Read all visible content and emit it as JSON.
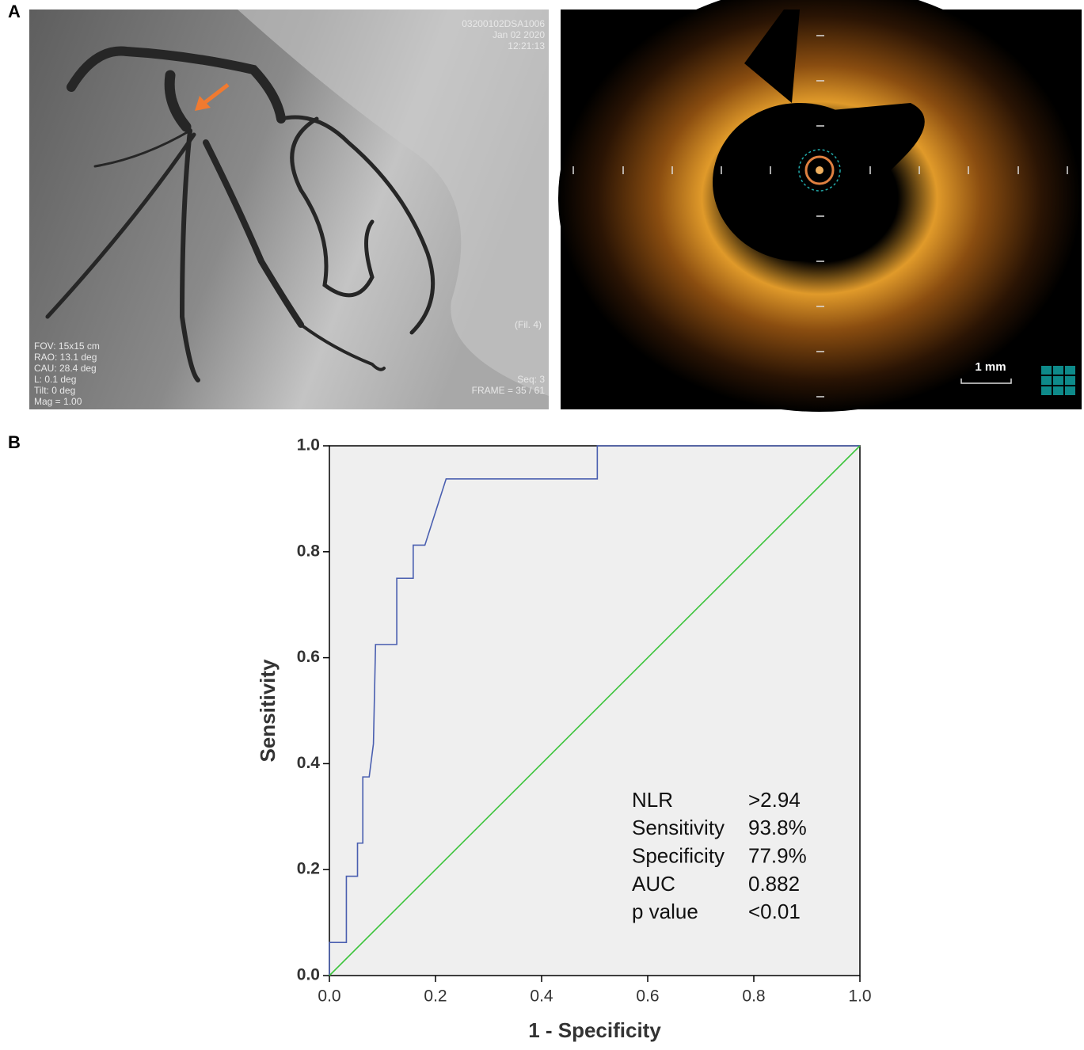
{
  "panel_labels": [
    "A",
    "B"
  ],
  "angiogram": {
    "header": [
      "03200102DSA1006",
      "Jan 02 2020",
      "12:21:13"
    ],
    "info": [
      "FOV: 15x15 cm",
      "RAO: 13.1 deg",
      "CAU: 28.4 deg",
      "L: 0.1 deg",
      "Tilt: 0 deg",
      "Mag = 1.00"
    ],
    "filter": "(Fil. 4)",
    "seq": "Seq: 3",
    "frame": "FRAME = 35 / 61"
  },
  "oct": {
    "scale": "1 mm"
  },
  "chart_data": {
    "type": "line",
    "xlabel": "1 - Specificity",
    "ylabel": "Sensitivity",
    "xlim": [
      0,
      1
    ],
    "ylim": [
      0,
      1
    ],
    "xticks": [
      {
        "value": 0,
        "label": "0.0"
      },
      {
        "value": 0.2,
        "label": "0.2"
      },
      {
        "value": 0.4,
        "label": "0.4"
      },
      {
        "value": 0.6,
        "label": "0.6"
      },
      {
        "value": 0.8,
        "label": "0.8"
      },
      {
        "value": 1,
        "label": "1.0"
      }
    ],
    "yticks": [
      {
        "value": 0,
        "label": "0.0"
      },
      {
        "value": 0.2,
        "label": "0.2"
      },
      {
        "value": 0.4,
        "label": "0.4"
      },
      {
        "value": 0.6,
        "label": "0.6"
      },
      {
        "value": 0.8,
        "label": "0.8"
      },
      {
        "value": 1,
        "label": "1.0"
      }
    ],
    "series": [
      {
        "color": "#4a5fb0",
        "x": [
          0,
          0,
          0.032,
          0.032,
          0.053,
          0.053,
          0.063,
          0.063,
          0.075,
          0.083,
          0.087,
          0.127,
          0.127,
          0.158,
          0.158,
          0.18,
          0.22,
          0.505,
          0.505,
          1.0
        ],
        "values": [
          0,
          0.0625,
          0.0625,
          0.1875,
          0.1875,
          0.25,
          0.25,
          0.375,
          0.375,
          0.4375,
          0.625,
          0.625,
          0.75,
          0.75,
          0.8125,
          0.8125,
          0.9375,
          0.9375,
          1,
          1
        ]
      },
      {
        "color": "#3cc43c",
        "x": [
          0,
          1
        ],
        "values": [
          0,
          1
        ]
      }
    ],
    "annotation": [
      [
        "NLR",
        ">2.94"
      ],
      [
        "Sensitivity",
        "93.8%"
      ],
      [
        "Specificity",
        "77.9%"
      ],
      [
        "AUC",
        "0.882"
      ],
      [
        "p value",
        "<0.01"
      ]
    ]
  }
}
